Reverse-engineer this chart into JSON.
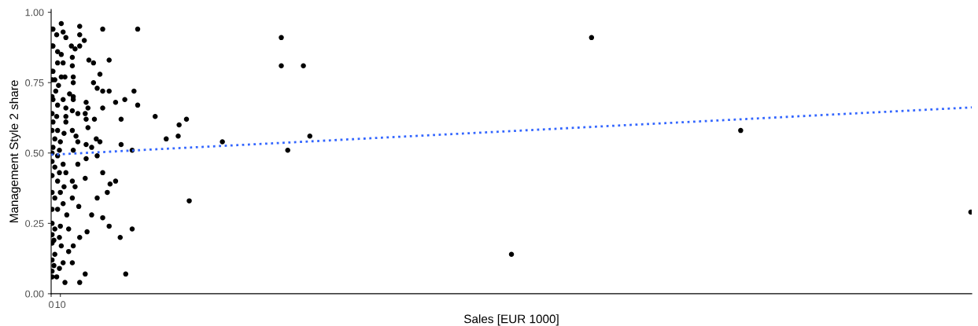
{
  "chart_data": {
    "type": "scatter",
    "xlabel": "Sales [EUR 1000]",
    "ylabel": "Management Style 2 share",
    "xlim": [
      0,
      1000
    ],
    "xticks": [
      0,
      10
    ],
    "ylim": [
      0,
      1.01
    ],
    "yticks": [
      {
        "value": 0,
        "label": "0.00"
      },
      {
        "value": 0.25,
        "label": "0.25"
      },
      {
        "value": 0.5,
        "label": "0.50"
      },
      {
        "value": 0.75,
        "label": "0.75"
      },
      {
        "value": 1.0,
        "label": "1.00"
      }
    ],
    "grid": false,
    "marker": "circle",
    "series": [
      {
        "color": "#000000",
        "x": [
          11,
          31,
          56,
          94,
          2,
          6,
          13,
          16,
          31,
          22,
          36,
          31,
          26,
          2,
          7,
          11,
          23,
          41,
          46,
          63,
          7,
          13,
          23,
          2,
          11,
          15,
          24,
          24,
          53,
          4,
          8,
          46,
          50,
          56,
          63,
          90,
          5,
          20,
          24,
          2,
          13,
          24,
          38,
          56,
          70,
          80,
          94,
          7,
          16,
          23,
          29,
          37,
          40,
          6,
          16,
          38,
          47,
          40,
          76,
          113,
          147,
          139,
          2,
          16,
          7,
          14,
          23,
          27,
          49,
          53,
          125,
          138,
          4,
          10,
          29,
          38,
          44,
          76,
          88,
          2,
          9,
          24,
          7,
          38,
          50,
          29,
          13,
          4,
          9,
          16,
          23,
          37,
          56,
          64,
          70,
          61,
          7,
          14,
          26,
          10,
          23,
          50,
          4,
          13,
          30,
          7,
          17,
          44,
          56,
          63,
          88,
          75,
          10,
          19,
          39,
          31,
          4,
          9,
          3,
          11,
          24,
          19,
          4,
          13,
          23,
          3,
          9,
          37,
          81,
          15,
          31,
          6,
          1,
          1,
          1,
          1,
          1,
          1,
          1,
          1,
          1,
          1,
          1,
          1,
          1,
          1,
          1,
          1,
          1,
          1,
          150,
          186,
          250,
          250,
          274,
          257,
          281,
          500,
          587,
          749,
          999
        ],
        "values": [
          0.96,
          0.95,
          0.94,
          0.94,
          0.94,
          0.92,
          0.93,
          0.91,
          0.92,
          0.88,
          0.9,
          0.88,
          0.87,
          0.88,
          0.86,
          0.85,
          0.84,
          0.83,
          0.82,
          0.83,
          0.82,
          0.82,
          0.81,
          0.79,
          0.77,
          0.77,
          0.77,
          0.75,
          0.78,
          0.76,
          0.74,
          0.75,
          0.73,
          0.72,
          0.72,
          0.72,
          0.72,
          0.71,
          0.7,
          0.69,
          0.69,
          0.69,
          0.68,
          0.66,
          0.68,
          0.69,
          0.67,
          0.67,
          0.66,
          0.65,
          0.64,
          0.64,
          0.66,
          0.63,
          0.63,
          0.62,
          0.62,
          0.59,
          0.62,
          0.63,
          0.62,
          0.6,
          0.61,
          0.61,
          0.58,
          0.57,
          0.58,
          0.56,
          0.55,
          0.54,
          0.55,
          0.56,
          0.55,
          0.54,
          0.54,
          0.53,
          0.52,
          0.53,
          0.51,
          0.52,
          0.51,
          0.51,
          0.49,
          0.48,
          0.49,
          0.46,
          0.46,
          0.45,
          0.43,
          0.43,
          0.4,
          0.41,
          0.43,
          0.39,
          0.4,
          0.36,
          0.4,
          0.38,
          0.38,
          0.36,
          0.34,
          0.34,
          0.34,
          0.32,
          0.31,
          0.3,
          0.28,
          0.28,
          0.27,
          0.24,
          0.23,
          0.2,
          0.24,
          0.23,
          0.22,
          0.2,
          0.23,
          0.2,
          0.19,
          0.17,
          0.17,
          0.15,
          0.14,
          0.11,
          0.11,
          0.1,
          0.09,
          0.07,
          0.07,
          0.04,
          0.04,
          0.06,
          0.08,
          0.94,
          0.88,
          0.79,
          0.76,
          0.7,
          0.64,
          0.58,
          0.5,
          0.47,
          0.42,
          0.36,
          0.3,
          0.25,
          0.21,
          0.18,
          0.12,
          0.06,
          0.33,
          0.54,
          0.91,
          0.81,
          0.81,
          0.51,
          0.56,
          0.14,
          0.91,
          0.58,
          0.29
        ]
      },
      {
        "type": "line",
        "color": "#3366ff",
        "line_style": "dotted",
        "marker": "none",
        "x": [
          0,
          1000
        ],
        "values": [
          0.494,
          0.662
        ]
      }
    ]
  }
}
